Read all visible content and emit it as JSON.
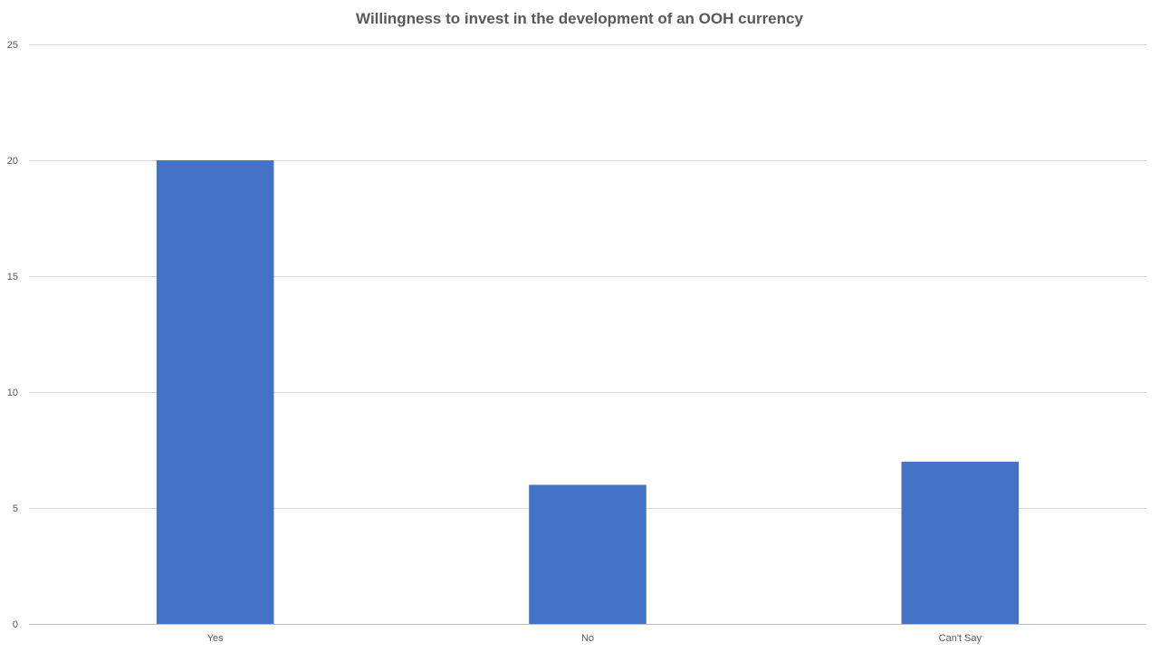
{
  "chart_data": {
    "type": "bar",
    "title": "Willingness to invest in the development of an OOH currency",
    "categories": [
      "Yes",
      "No",
      "Can't Say"
    ],
    "values": [
      20,
      6,
      7
    ],
    "xlabel": "",
    "ylabel": "",
    "ylim": [
      0,
      25
    ],
    "yticks": [
      0,
      5,
      10,
      15,
      20,
      25
    ],
    "grid": true,
    "legend": "none",
    "colors": {
      "bar": "#4472C4",
      "grid": "#D9D9D9",
      "axis": "#BFBFBF",
      "text": "#595959"
    }
  }
}
